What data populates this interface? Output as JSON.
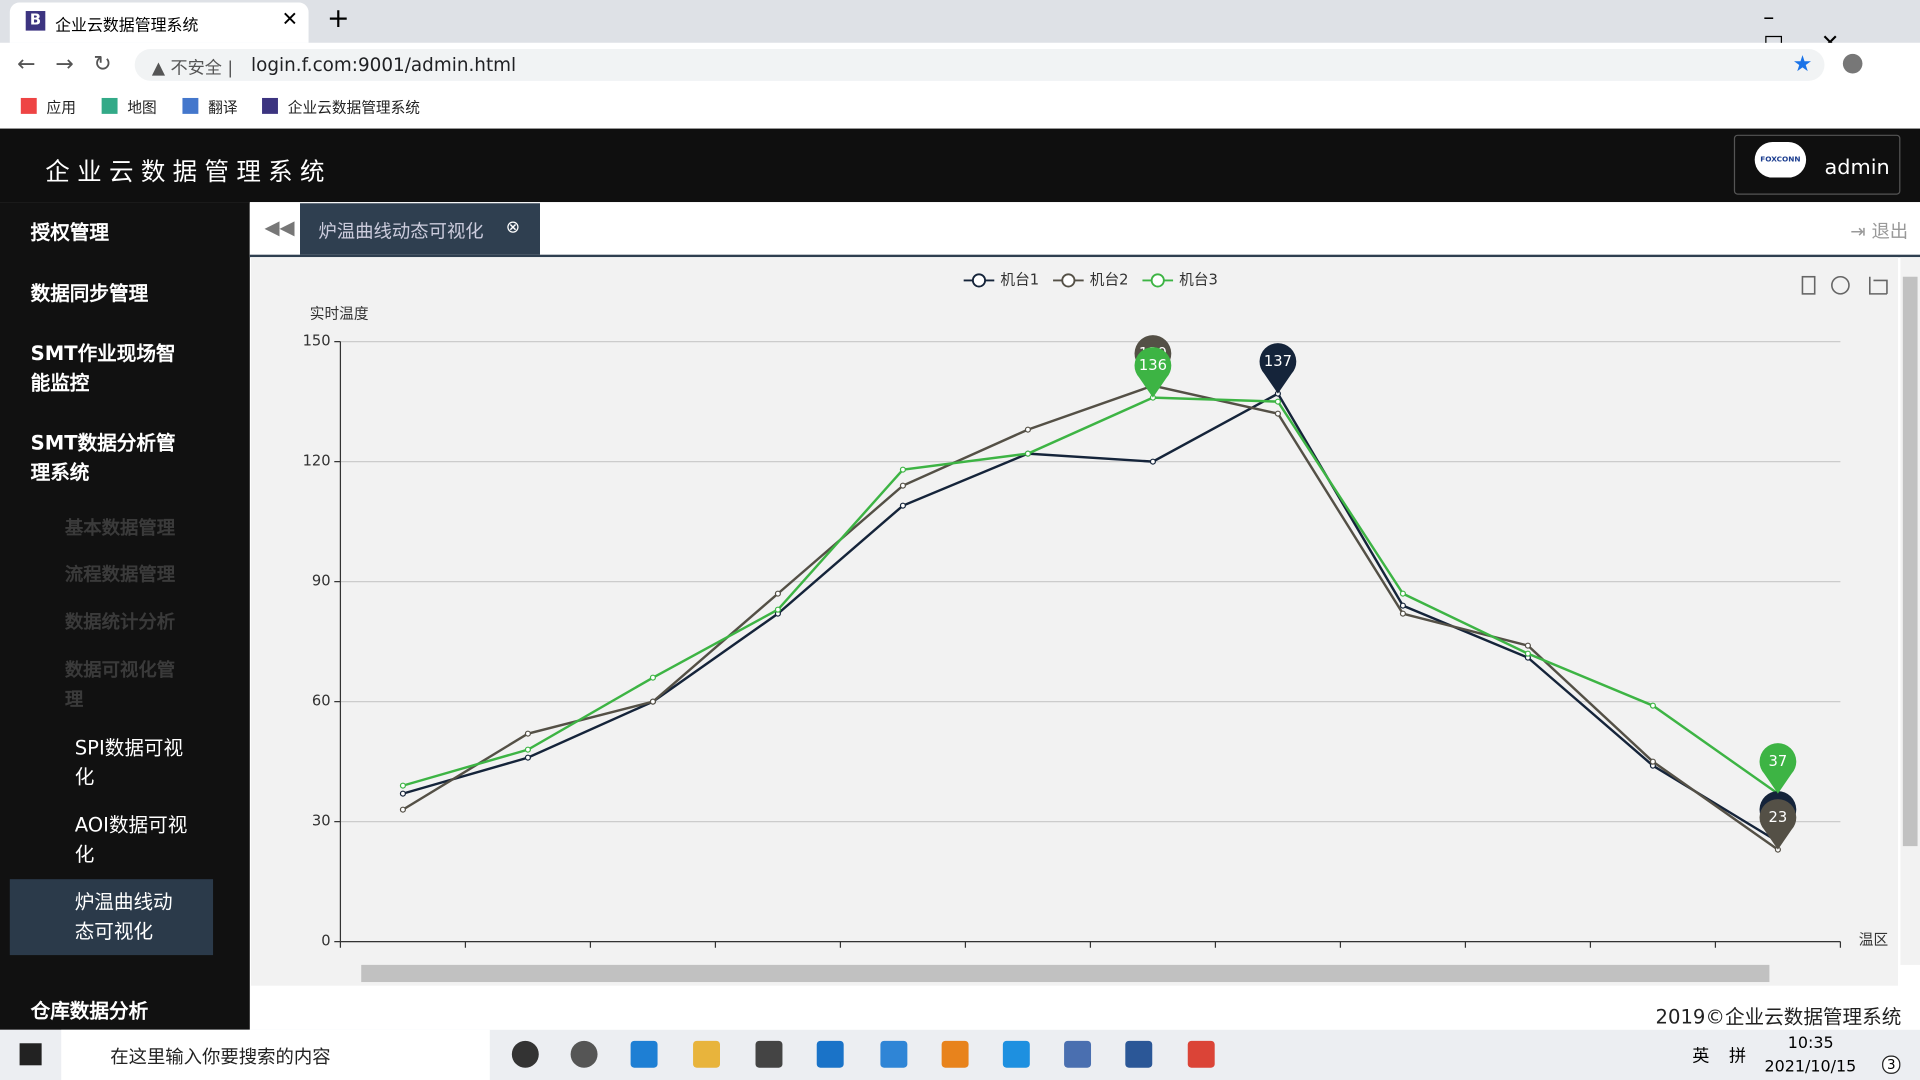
{
  "browser": {
    "tab_title": "企业云数据管理系统",
    "insecure": "不安全",
    "url": "login.f.com:9001/admin.html",
    "bookmarks": [
      "应用",
      "地图",
      "翻译",
      "企业云数据管理系统"
    ]
  },
  "header": {
    "title": "企业云数据管理系统",
    "logo": "FOXCONN",
    "user": "admin"
  },
  "sidebar": {
    "items": [
      "授权管理",
      "数据同步管理",
      "SMT作业现场智能监控",
      "SMT数据分析管理系统"
    ],
    "subitems": [
      "基本数据管理",
      "流程数据管理",
      "数据统计分析",
      "数据可视化管理"
    ],
    "subsubitems": [
      "SPI数据可视化",
      "AOI数据可视化",
      "炉温曲线动态可视化"
    ],
    "last": "仓库数据分析"
  },
  "tabs": {
    "active": "炉温曲线动态可视化",
    "logout": "退出"
  },
  "footer": "2019©企业云数据管理系统",
  "taskbar": {
    "search": "在这里输入你要搜索的内容",
    "ime": "英",
    "ime2": "拼",
    "time": "10:35",
    "date": "2021/10/15",
    "notifications": "3"
  },
  "chart_data": {
    "type": "line",
    "y_label": "实时温度",
    "x_label": "温区",
    "categories": [
      null,
      null,
      null,
      null,
      null,
      null,
      null,
      null,
      null,
      null,
      null,
      null
    ],
    "series": [
      {
        "name": "机台1",
        "color": "#15243a",
        "values": [
          37,
          46,
          60,
          82,
          109,
          122,
          120,
          137,
          84,
          71,
          44,
          25
        ]
      },
      {
        "name": "机台2",
        "color": "#545046",
        "values": [
          33,
          52,
          60,
          87,
          114,
          128,
          139,
          132,
          82,
          74,
          45,
          23
        ]
      },
      {
        "name": "机台3",
        "color": "#3db444",
        "values": [
          39,
          48,
          66,
          83,
          118,
          122,
          136,
          135,
          87,
          72,
          59,
          37
        ]
      }
    ],
    "ylim": [
      0,
      150
    ],
    "yticks": [
      0,
      30,
      60,
      90,
      120,
      150
    ],
    "grid": true
  }
}
